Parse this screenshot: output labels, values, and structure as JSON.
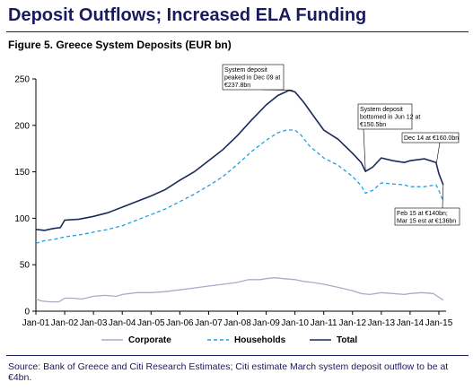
{
  "header": {
    "title": "Deposit Outflows; Increased ELA Funding",
    "figure_title": "Figure 5. Greece System Deposits (EUR bn)",
    "source": "Source: Bank of Greece and Citi Research Estimates; Citi estimate March system deposit outflow to be at €4bn."
  },
  "chart_data": {
    "type": "line",
    "title": "Figure 5. Greece System Deposits (EUR bn)",
    "xlabel": "",
    "ylabel": "",
    "ylim": [
      0,
      250
    ],
    "yticks": [
      0,
      50,
      100,
      150,
      200,
      250
    ],
    "xlim": [
      2001.0,
      2015.25
    ],
    "xticks": [
      "Jan-01",
      "Jan-02",
      "Jan-03",
      "Jan-04",
      "Jan-05",
      "Jan-06",
      "Jan-07",
      "Jan-08",
      "Jan-09",
      "Jan-10",
      "Jan-11",
      "Jan-12",
      "Jan-13",
      "Jan-14",
      "Jan-15"
    ],
    "grid": false,
    "legend_position": "bottom",
    "series": [
      {
        "name": "Corporate",
        "color": "#a9abc7",
        "style": "solid",
        "points": [
          [
            2001.0,
            13
          ],
          [
            2001.2,
            11
          ],
          [
            2001.5,
            10
          ],
          [
            2001.8,
            10
          ],
          [
            2002.0,
            14
          ],
          [
            2002.3,
            14
          ],
          [
            2002.6,
            13
          ],
          [
            2003.0,
            16
          ],
          [
            2003.4,
            17
          ],
          [
            2003.8,
            16
          ],
          [
            2004.0,
            18
          ],
          [
            2004.5,
            20
          ],
          [
            2005.0,
            20
          ],
          [
            2005.5,
            21
          ],
          [
            2006.0,
            23
          ],
          [
            2006.5,
            25
          ],
          [
            2007.0,
            27
          ],
          [
            2007.5,
            29
          ],
          [
            2008.0,
            31
          ],
          [
            2008.4,
            34
          ],
          [
            2008.8,
            34
          ],
          [
            2009.0,
            35
          ],
          [
            2009.3,
            36
          ],
          [
            2009.6,
            35
          ],
          [
            2010.0,
            34
          ],
          [
            2010.3,
            32
          ],
          [
            2010.6,
            31
          ],
          [
            2011.0,
            29
          ],
          [
            2011.3,
            27
          ],
          [
            2011.6,
            25
          ],
          [
            2012.0,
            22
          ],
          [
            2012.3,
            19
          ],
          [
            2012.6,
            18
          ],
          [
            2013.0,
            20
          ],
          [
            2013.4,
            19
          ],
          [
            2013.8,
            18
          ],
          [
            2014.0,
            19
          ],
          [
            2014.4,
            20
          ],
          [
            2014.8,
            19
          ],
          [
            2015.0,
            15
          ],
          [
            2015.15,
            12
          ]
        ]
      },
      {
        "name": "Households",
        "color": "#1ba1e2",
        "style": "dashed",
        "points": [
          [
            2001.0,
            73
          ],
          [
            2001.3,
            76
          ],
          [
            2001.6,
            77
          ],
          [
            2002.0,
            80
          ],
          [
            2002.5,
            82
          ],
          [
            2003.0,
            85
          ],
          [
            2003.5,
            88
          ],
          [
            2004.0,
            92
          ],
          [
            2004.5,
            98
          ],
          [
            2005.0,
            104
          ],
          [
            2005.5,
            110
          ],
          [
            2006.0,
            118
          ],
          [
            2006.5,
            126
          ],
          [
            2007.0,
            135
          ],
          [
            2007.5,
            145
          ],
          [
            2008.0,
            158
          ],
          [
            2008.5,
            172
          ],
          [
            2009.0,
            184
          ],
          [
            2009.4,
            192
          ],
          [
            2009.7,
            195
          ],
          [
            2010.0,
            195
          ],
          [
            2010.2,
            190
          ],
          [
            2010.5,
            178
          ],
          [
            2011.0,
            165
          ],
          [
            2011.5,
            157
          ],
          [
            2012.0,
            145
          ],
          [
            2012.3,
            135
          ],
          [
            2012.45,
            127
          ],
          [
            2012.7,
            130
          ],
          [
            2013.0,
            138
          ],
          [
            2013.4,
            137
          ],
          [
            2013.8,
            136
          ],
          [
            2014.0,
            134
          ],
          [
            2014.5,
            134
          ],
          [
            2014.9,
            136
          ],
          [
            2015.0,
            130
          ],
          [
            2015.1,
            122
          ],
          [
            2015.15,
            118
          ]
        ]
      },
      {
        "name": "Total",
        "color": "#1a2a5a",
        "style": "solid",
        "points": [
          [
            2001.0,
            88
          ],
          [
            2001.3,
            87
          ],
          [
            2001.6,
            89
          ],
          [
            2001.85,
            90
          ],
          [
            2002.0,
            98
          ],
          [
            2002.5,
            99
          ],
          [
            2003.0,
            102
          ],
          [
            2003.5,
            106
          ],
          [
            2004.0,
            112
          ],
          [
            2004.5,
            118
          ],
          [
            2005.0,
            124
          ],
          [
            2005.5,
            131
          ],
          [
            2006.0,
            141
          ],
          [
            2006.5,
            150
          ],
          [
            2007.0,
            162
          ],
          [
            2007.5,
            174
          ],
          [
            2008.0,
            189
          ],
          [
            2008.5,
            206
          ],
          [
            2009.0,
            222
          ],
          [
            2009.4,
            232
          ],
          [
            2009.8,
            237.8
          ],
          [
            2010.0,
            236
          ],
          [
            2010.3,
            225
          ],
          [
            2010.6,
            212
          ],
          [
            2011.0,
            195
          ],
          [
            2011.5,
            185
          ],
          [
            2012.0,
            170
          ],
          [
            2012.3,
            160
          ],
          [
            2012.45,
            150.5
          ],
          [
            2012.7,
            155
          ],
          [
            2013.0,
            165
          ],
          [
            2013.4,
            162
          ],
          [
            2013.8,
            160
          ],
          [
            2014.0,
            162
          ],
          [
            2014.5,
            164
          ],
          [
            2014.9,
            160
          ],
          [
            2015.0,
            148
          ],
          [
            2015.1,
            140
          ],
          [
            2015.15,
            136
          ]
        ]
      }
    ],
    "annotations": [
      {
        "lines": [
          "System deposit",
          "peaked in Dec 09 at",
          "€237.8bn"
        ],
        "x": 2009.92,
        "y": 237.8
      },
      {
        "lines": [
          "System deposit",
          "bottomed in Jun 12 at",
          "€150.5bn"
        ],
        "x": 2012.45,
        "y": 150.5
      },
      {
        "lines": [
          "Dec 14 at €160.0bn"
        ],
        "x": 2014.92,
        "y": 160
      },
      {
        "lines": [
          "Feb 15 at €140bn;",
          "Mar 15 est at €136bn"
        ],
        "x": 2015.15,
        "y": 136
      }
    ]
  }
}
